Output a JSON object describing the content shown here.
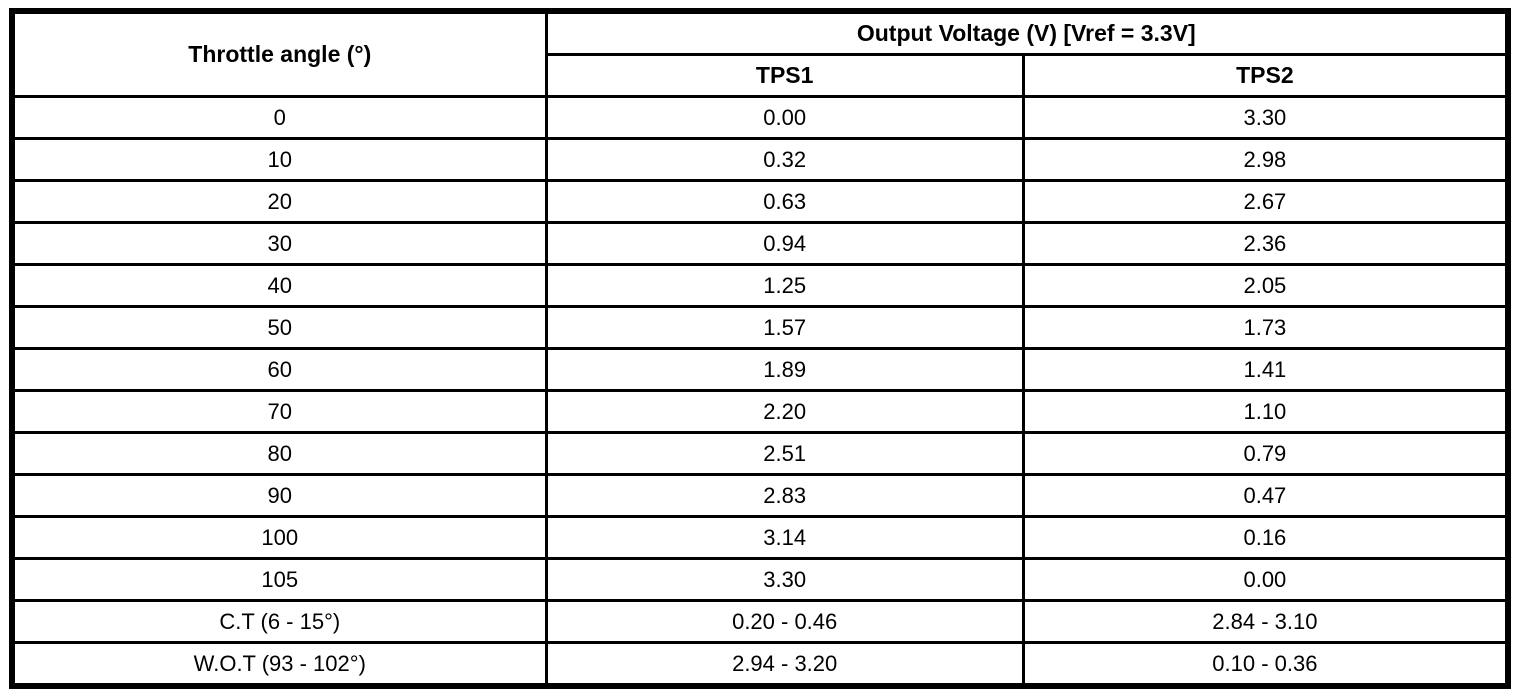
{
  "table": {
    "throttle_angle_header": "Throttle angle (°)",
    "output_voltage_header": "Output Voltage (V) [Vref = 3.3V]",
    "tps1_header": "TPS1",
    "tps2_header": "TPS2",
    "rows": [
      {
        "angle": "0",
        "tps1": "0.00",
        "tps2": "3.30"
      },
      {
        "angle": "10",
        "tps1": "0.32",
        "tps2": "2.98"
      },
      {
        "angle": "20",
        "tps1": "0.63",
        "tps2": "2.67"
      },
      {
        "angle": "30",
        "tps1": "0.94",
        "tps2": "2.36"
      },
      {
        "angle": "40",
        "tps1": "1.25",
        "tps2": "2.05"
      },
      {
        "angle": "50",
        "tps1": "1.57",
        "tps2": "1.73"
      },
      {
        "angle": "60",
        "tps1": "1.89",
        "tps2": "1.41"
      },
      {
        "angle": "70",
        "tps1": "2.20",
        "tps2": "1.10"
      },
      {
        "angle": "80",
        "tps1": "2.51",
        "tps2": "0.79"
      },
      {
        "angle": "90",
        "tps1": "2.83",
        "tps2": "0.47"
      },
      {
        "angle": "100",
        "tps1": "3.14",
        "tps2": "0.16"
      },
      {
        "angle": "105",
        "tps1": "3.30",
        "tps2": "0.00"
      },
      {
        "angle": "C.T (6 - 15°)",
        "tps1": "0.20 - 0.46",
        "tps2": "2.84 - 3.10"
      },
      {
        "angle": "W.O.T (93 - 102°)",
        "tps1": "2.94 - 3.20",
        "tps2": "0.10 - 0.36"
      }
    ],
    "colors": {
      "border": "#000000",
      "background": "#ffffff",
      "text": "#000000"
    }
  }
}
